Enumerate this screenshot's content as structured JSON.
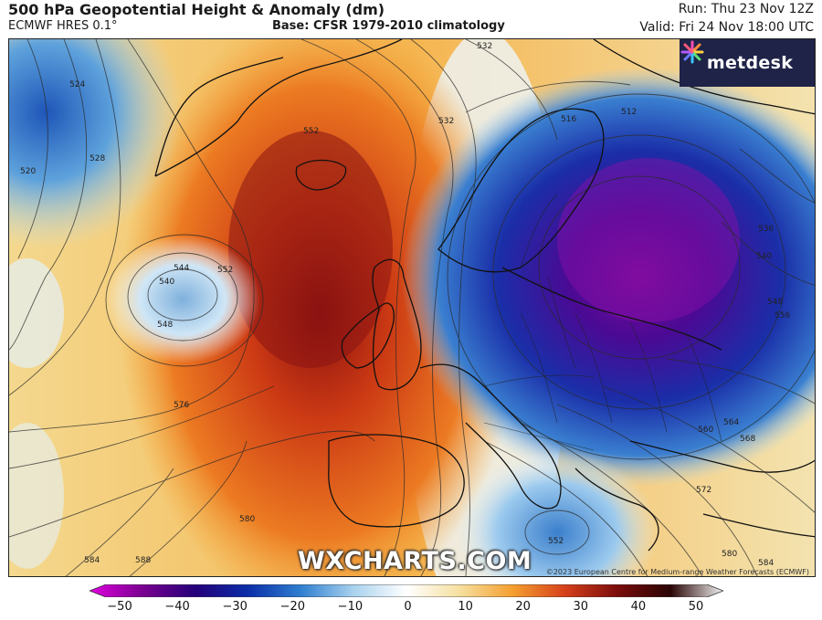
{
  "header": {
    "title": "500 hPa Geopotential Height & Anomaly (dm)",
    "model": "ECMWF HRES 0.1°",
    "base": "Base: CFSR 1979-2010 climatology",
    "run": "Run: Thu 23 Nov 12Z",
    "valid": "Valid: Fri 24 Nov 18:00 UTC"
  },
  "branding": {
    "logo_text": "metdesk",
    "watermark": "WXCHARTS.COM",
    "copyright": "©2023 European Centre for Medium-range Weather Forecasts (ECMWF)"
  },
  "contour_labels": [
    "524",
    "528",
    "520",
    "552",
    "532",
    "532",
    "512",
    "516",
    "544",
    "540",
    "548",
    "552",
    "576",
    "580",
    "584",
    "588",
    "560",
    "564",
    "568",
    "572",
    "580",
    "584",
    "552",
    "536",
    "540",
    "548",
    "556"
  ],
  "colorbar": {
    "ticks": [
      "−50",
      "−40",
      "−30",
      "−20",
      "−10",
      "0",
      "10",
      "20",
      "30",
      "40",
      "50"
    ],
    "colors": [
      "#e000e0",
      "#7a0090",
      "#25007a",
      "#0b2ea8",
      "#2f7fd0",
      "#a9d2ee",
      "#ffffff",
      "#f6e0a0",
      "#f5a030",
      "#d6401a",
      "#7a0c0c",
      "#2a0505",
      "#f2f2f2"
    ]
  }
}
